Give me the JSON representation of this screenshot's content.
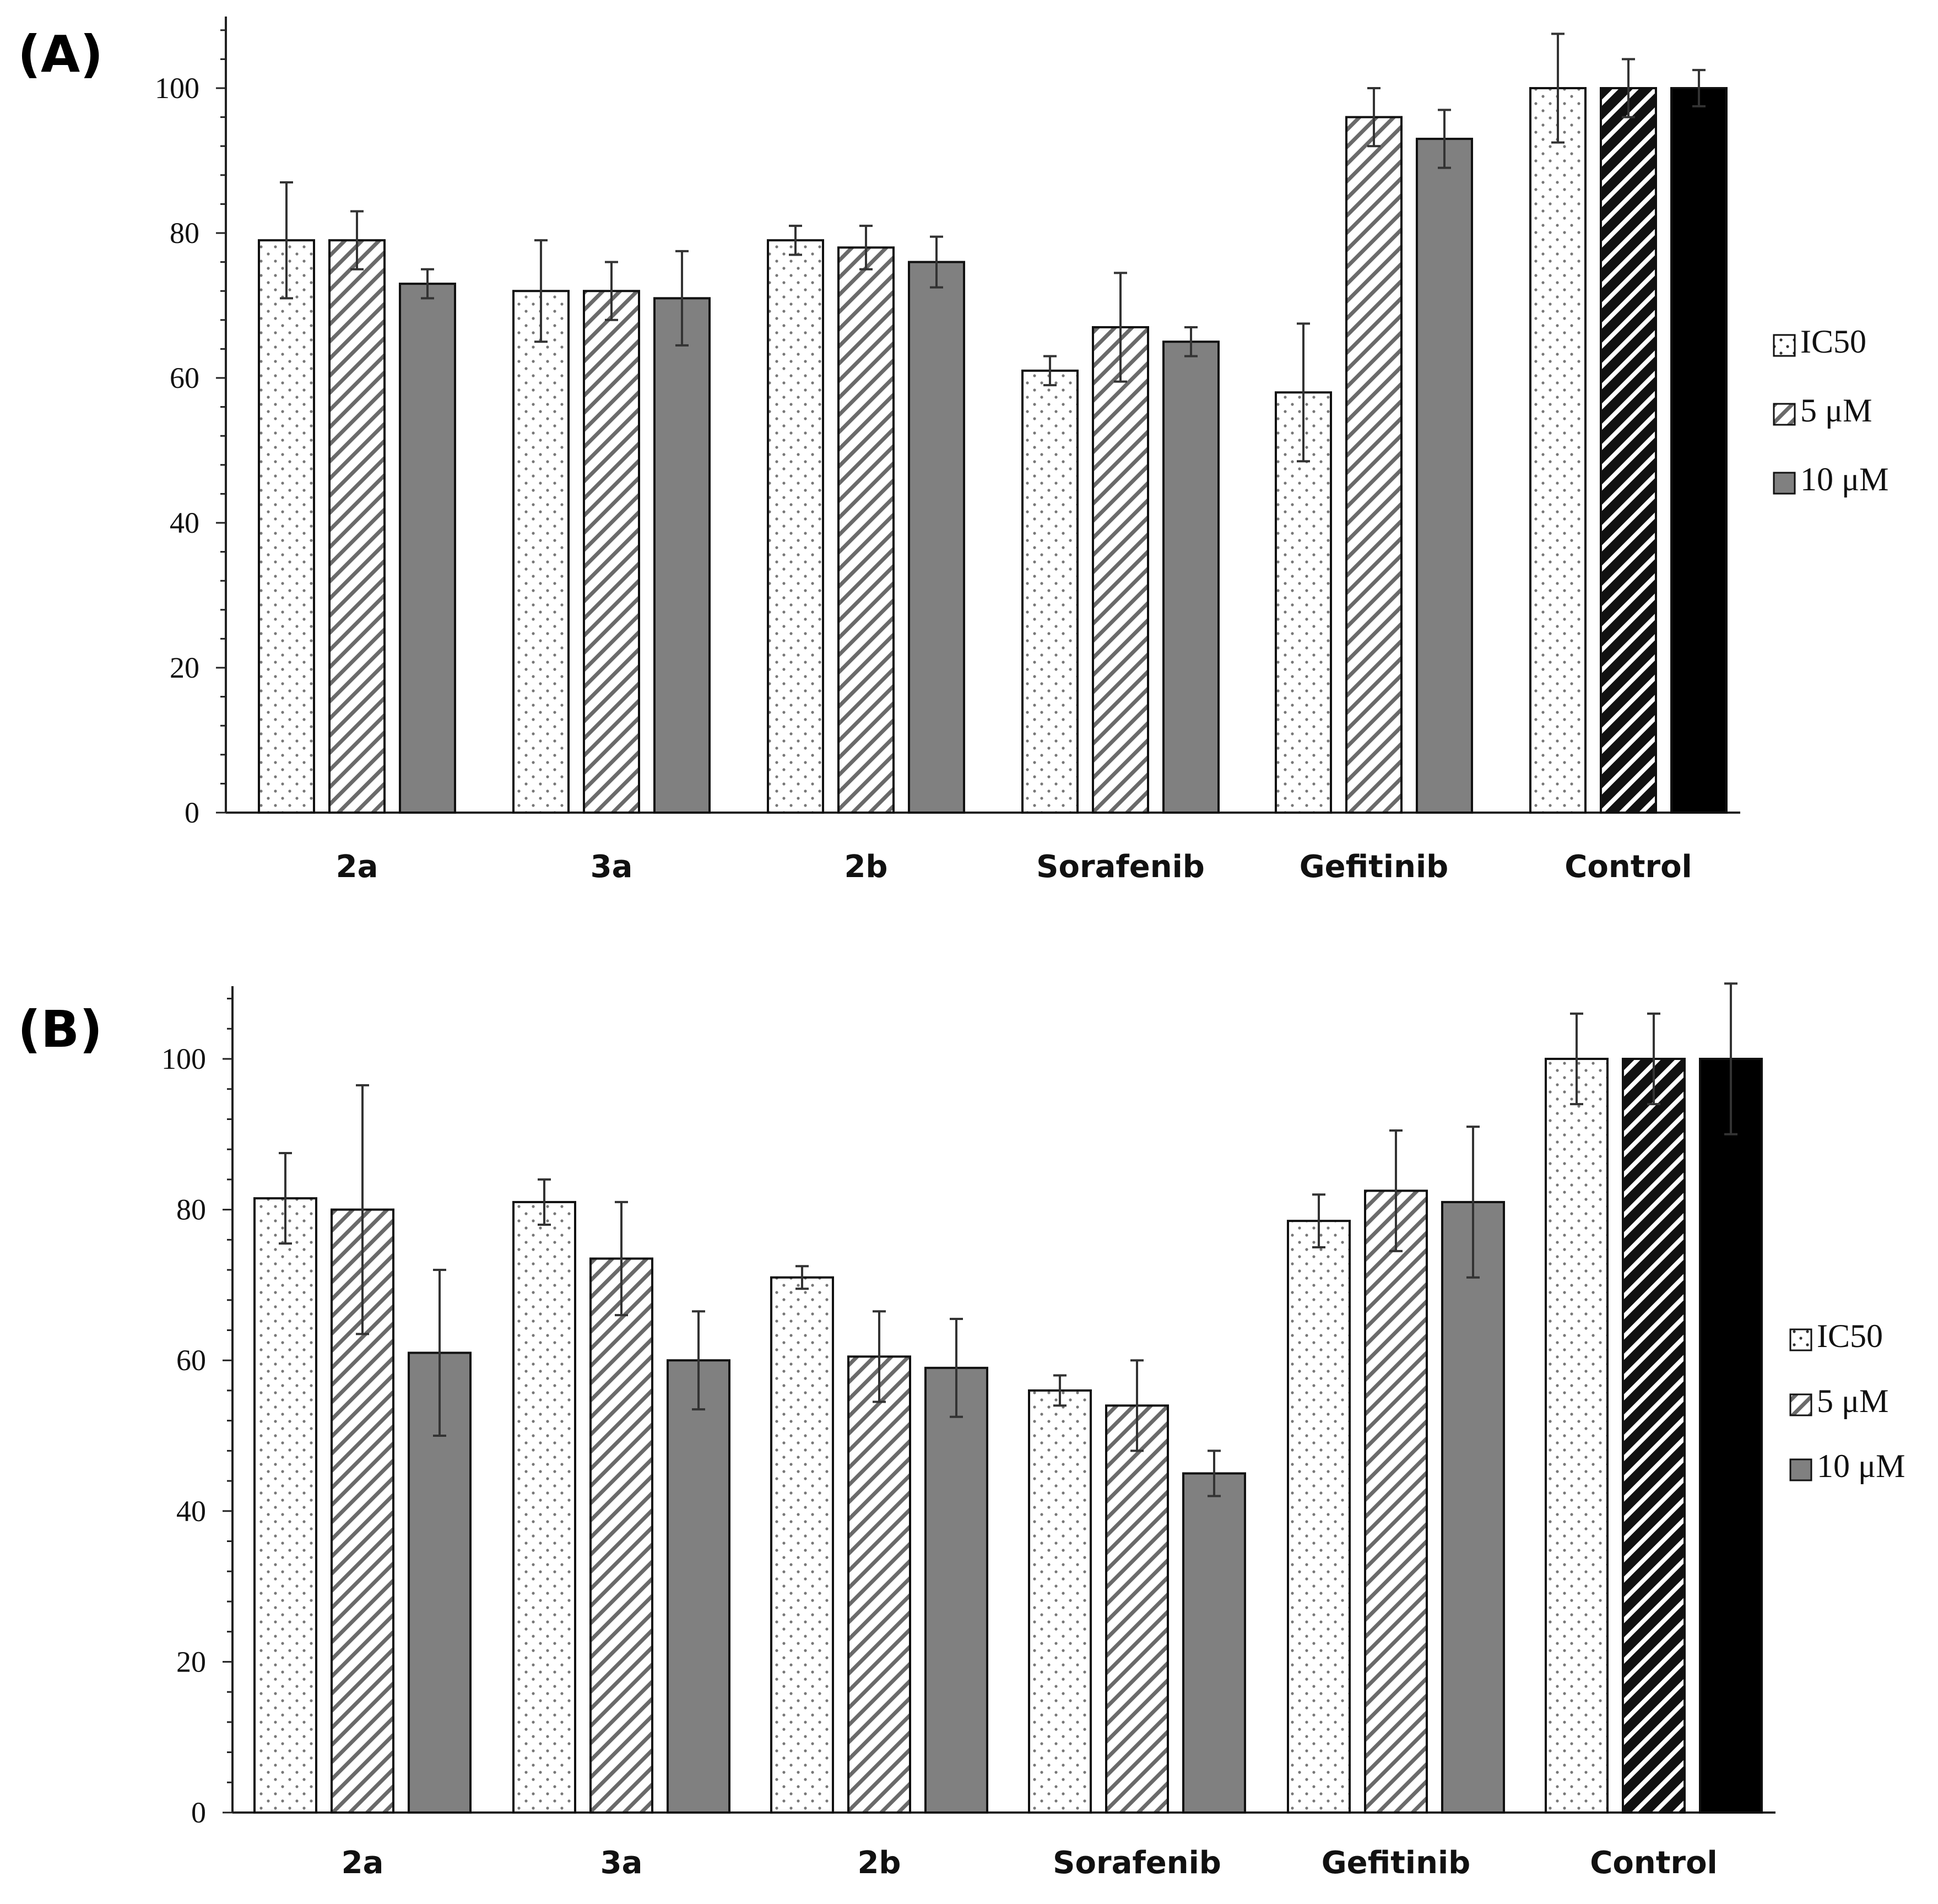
{
  "chart_data": [
    {
      "panel": "(A)",
      "type": "bar",
      "categories": [
        "2a",
        "3a",
        "2b",
        "Sorafenib",
        "Gefitinib",
        "Control"
      ],
      "series": [
        {
          "name": "IC50",
          "values": [
            79,
            72,
            79,
            61,
            58,
            100
          ],
          "errors": [
            8,
            7,
            2,
            2,
            9.5,
            7.5
          ]
        },
        {
          "name": "5 μM",
          "values": [
            79,
            72,
            78,
            67,
            96,
            100
          ],
          "errors": [
            4,
            4,
            3,
            7.5,
            4,
            4
          ]
        },
        {
          "name": "10 μM",
          "values": [
            73,
            71,
            76,
            65,
            93,
            100
          ],
          "errors": [
            2,
            6.5,
            3.5,
            2,
            4,
            2.5
          ]
        }
      ],
      "yticks": [
        0,
        20,
        40,
        60,
        80,
        100
      ],
      "ylim": [
        0,
        110
      ],
      "legend": "right"
    },
    {
      "panel": "(B)",
      "type": "bar",
      "categories": [
        "2a",
        "3a",
        "2b",
        "Sorafenib",
        "Gefitinib",
        "Control"
      ],
      "series": [
        {
          "name": "IC50",
          "values": [
            81.5,
            81,
            71,
            56,
            78.5,
            100
          ],
          "errors": [
            6,
            3,
            1.5,
            2,
            3.5,
            6
          ]
        },
        {
          "name": "5 μM",
          "values": [
            80,
            73.5,
            60.5,
            54,
            82.5,
            100
          ],
          "errors": [
            16.5,
            7.5,
            6,
            6,
            8,
            6
          ]
        },
        {
          "name": "10 μM",
          "values": [
            61,
            60,
            59,
            45,
            81,
            100
          ],
          "errors": [
            11,
            6.5,
            6.5,
            3,
            10,
            10
          ]
        }
      ],
      "yticks": [
        0,
        20,
        40,
        60,
        80,
        100
      ],
      "ylim": [
        0,
        110
      ],
      "legend": "right"
    }
  ],
  "colors": {
    "ic50_fill": "#ffffff",
    "hatch_fill": "#ffffff",
    "hatch_line": "#555555",
    "ten_um_fill": "#808080",
    "control_10um_fill": "#000000",
    "control_hatch_bg": "#111111",
    "error_bar": "#333333"
  }
}
